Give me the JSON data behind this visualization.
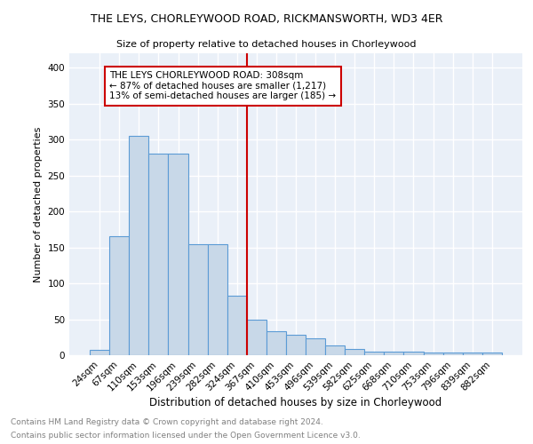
{
  "title1": "THE LEYS, CHORLEYWOOD ROAD, RICKMANSWORTH, WD3 4ER",
  "title2": "Size of property relative to detached houses in Chorleywood",
  "xlabel": "Distribution of detached houses by size in Chorleywood",
  "ylabel": "Number of detached properties",
  "categories": [
    "24sqm",
    "67sqm",
    "110sqm",
    "153sqm",
    "196sqm",
    "239sqm",
    "282sqm",
    "324sqm",
    "367sqm",
    "410sqm",
    "453sqm",
    "496sqm",
    "539sqm",
    "582sqm",
    "625sqm",
    "668sqm",
    "710sqm",
    "753sqm",
    "796sqm",
    "839sqm",
    "882sqm"
  ],
  "values": [
    8,
    165,
    305,
    280,
    280,
    155,
    155,
    83,
    50,
    33,
    28,
    24,
    13,
    9,
    5,
    5,
    5,
    4,
    4,
    4,
    4
  ],
  "bar_color": "#c8d8e8",
  "bar_edge_color": "#5b9bd5",
  "vline_color": "#cc0000",
  "annotation_text": "THE LEYS CHORLEYWOOD ROAD: 308sqm\n← 87% of detached houses are smaller (1,217)\n13% of semi-detached houses are larger (185) →",
  "annotation_box_color": "white",
  "annotation_box_edge": "#cc0000",
  "ylim": [
    0,
    420
  ],
  "yticks": [
    0,
    50,
    100,
    150,
    200,
    250,
    300,
    350,
    400
  ],
  "footer1": "Contains HM Land Registry data © Crown copyright and database right 2024.",
  "footer2": "Contains public sector information licensed under the Open Government Licence v3.0.",
  "background_color": "#eaf0f8",
  "grid_color": "white"
}
